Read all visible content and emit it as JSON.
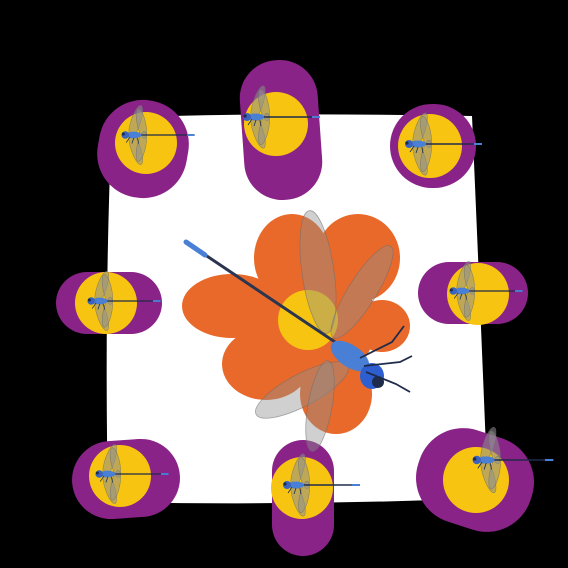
{
  "scene": {
    "background_color": "#000000",
    "canvas_color": "#ffffff",
    "colors": {
      "petal_purple": "#8a2387",
      "center_yellow": "#f7c511",
      "petal_orange": "#e8692a",
      "dragonfly_blue": "#4a7fd6",
      "dragonfly_dark": "#1f2b4a",
      "wing_gray": "#9a9a9a"
    },
    "small_flowers_count": 8,
    "large_flower_count": 1,
    "icons": [
      "purple-flower-icon",
      "orange-flower-icon",
      "dragonfly-icon"
    ]
  }
}
